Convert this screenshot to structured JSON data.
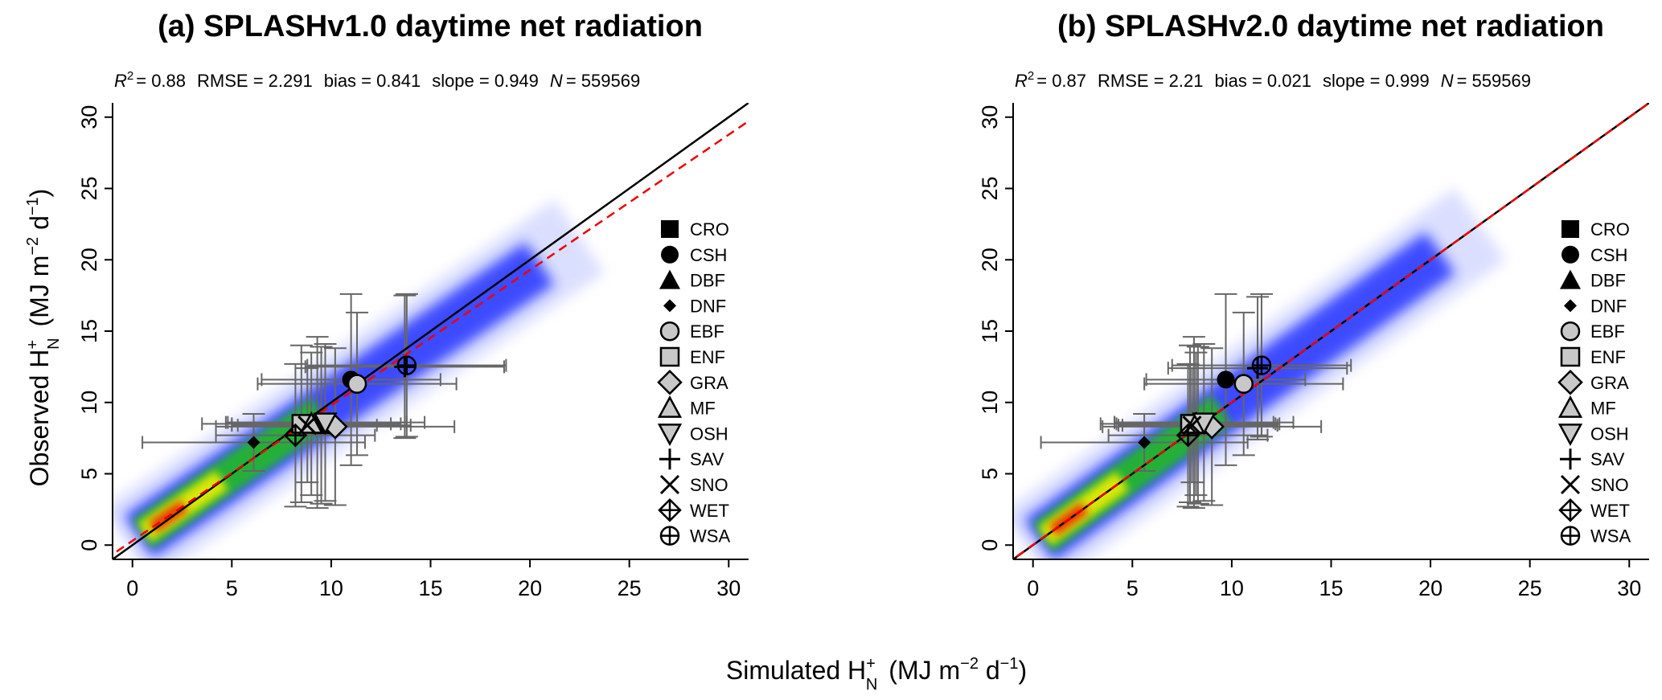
{
  "colors": {
    "density_low": "#d8dcff",
    "density_mid": "#2233ff",
    "density_green": "#22bb22",
    "density_yellow": "#eeee00",
    "density_red": "#ee2200",
    "fit_line": "#ee0000",
    "one_to_one": "#000000",
    "errorbar": "#666666"
  },
  "xlabel": "Simulated H",
  "xlabel_sup": "+",
  "xlabel_sub": "N",
  "xlabel_units": "(MJ m",
  "xlabel_exp1": "−2",
  "xlabel_mid": " d",
  "xlabel_exp2": "−1",
  "xlabel_close": ")",
  "ylabel": "Observed H",
  "ylabel_sup": "+",
  "ylabel_sub": "N",
  "ylabel_units": "(MJ m",
  "ylabel_exp1": "−2",
  "ylabel_mid": " d",
  "ylabel_exp2": "−1",
  "ylabel_close": ")",
  "legend": [
    "CRO",
    "CSH",
    "DBF",
    "DNF",
    "EBF",
    "ENF",
    "GRA",
    "MF",
    "OSH",
    "SAV",
    "SNO",
    "WET",
    "WSA"
  ],
  "chart_data": [
    {
      "type": "scatter",
      "title": "(a) SPLASHv1.0 daytime net radiation",
      "stats": {
        "r2_label": "R",
        "r2_exp": "2",
        "r2": "= 0.88",
        "rmse": "RMSE = 2.291",
        "bias": "bias = 0.841",
        "slope": "slope = 0.949",
        "n_label": "N",
        "n": "= 559569"
      },
      "xlim": [
        -1,
        31
      ],
      "ylim": [
        -1,
        31
      ],
      "xticks": [
        "0",
        "5",
        "10",
        "15",
        "20",
        "25",
        "30"
      ],
      "yticks": [
        "0",
        "5",
        "10",
        "15",
        "20",
        "25",
        "30"
      ],
      "fit_line": {
        "slope": 0.949,
        "intercept": 0.3
      },
      "one_to_one": true,
      "points": [
        {
          "pft": "CRO",
          "x": 9.5,
          "y": 8.4,
          "xerr": 4.5,
          "yerr": 5.5
        },
        {
          "pft": "CSH",
          "x": 11.0,
          "y": 11.6,
          "xerr": 4.5,
          "yerr": 6.0
        },
        {
          "pft": "DBF",
          "x": 9.3,
          "y": 8.6,
          "xerr": 4.5,
          "yerr": 6.0
        },
        {
          "pft": "DNF",
          "x": 6.1,
          "y": 7.2,
          "xerr": 5.6,
          "yerr": 2.0
        },
        {
          "pft": "EBF",
          "x": 11.3,
          "y": 11.3,
          "xerr": 5.0,
          "yerr": 5.0
        },
        {
          "pft": "ENF",
          "x": 8.5,
          "y": 8.5,
          "xerr": 5.0,
          "yerr": 5.5
        },
        {
          "pft": "GRA",
          "x": 10.2,
          "y": 8.3,
          "xerr": 6.0,
          "yerr": 5.5
        },
        {
          "pft": "MF",
          "x": 9.0,
          "y": 8.5,
          "xerr": 4.0,
          "yerr": 5.0
        },
        {
          "pft": "OSH",
          "x": 9.7,
          "y": 8.6,
          "xerr": 5.0,
          "yerr": 5.5
        },
        {
          "pft": "SAV",
          "x": 13.7,
          "y": 12.5,
          "xerr": 5.0,
          "yerr": 5.0
        },
        {
          "pft": "SNO",
          "x": 8.8,
          "y": 8.4,
          "xerr": 3.5,
          "yerr": 4.0
        },
        {
          "pft": "WET",
          "x": 8.2,
          "y": 7.7,
          "xerr": 4.0,
          "yerr": 5.0
        },
        {
          "pft": "WSA",
          "x": 13.8,
          "y": 12.6,
          "xerr": 5.0,
          "yerr": 5.0
        }
      ]
    },
    {
      "type": "scatter",
      "title": "(b) SPLASHv2.0 daytime net radiation",
      "stats": {
        "r2_label": "R",
        "r2_exp": "2",
        "r2": "= 0.87",
        "rmse": "RMSE = 2.21",
        "bias": "bias = 0.021",
        "slope": "slope = 0.999",
        "n_label": "N",
        "n": "= 559569"
      },
      "xlim": [
        -1,
        31
      ],
      "ylim": [
        -1,
        31
      ],
      "xticks": [
        "0",
        "5",
        "10",
        "15",
        "20",
        "25",
        "30"
      ],
      "yticks": [
        "0",
        "5",
        "10",
        "15",
        "20",
        "25",
        "30"
      ],
      "fit_line": {
        "slope": 0.999,
        "intercept": 0.02
      },
      "one_to_one": true,
      "points": [
        {
          "pft": "CRO",
          "x": 8.3,
          "y": 8.4,
          "xerr": 4.0,
          "yerr": 5.5
        },
        {
          "pft": "CSH",
          "x": 9.7,
          "y": 11.6,
          "xerr": 4.0,
          "yerr": 6.0
        },
        {
          "pft": "DBF",
          "x": 8.1,
          "y": 8.6,
          "xerr": 4.0,
          "yerr": 6.0
        },
        {
          "pft": "DNF",
          "x": 5.6,
          "y": 7.2,
          "xerr": 5.2,
          "yerr": 2.0
        },
        {
          "pft": "EBF",
          "x": 10.6,
          "y": 11.3,
          "xerr": 5.0,
          "yerr": 5.0
        },
        {
          "pft": "ENF",
          "x": 7.9,
          "y": 8.5,
          "xerr": 4.5,
          "yerr": 5.5
        },
        {
          "pft": "GRA",
          "x": 9.0,
          "y": 8.3,
          "xerr": 5.5,
          "yerr": 5.5
        },
        {
          "pft": "MF",
          "x": 8.2,
          "y": 8.5,
          "xerr": 4.0,
          "yerr": 5.0
        },
        {
          "pft": "OSH",
          "x": 8.6,
          "y": 8.6,
          "xerr": 4.5,
          "yerr": 5.5
        },
        {
          "pft": "SAV",
          "x": 11.3,
          "y": 12.4,
          "xerr": 4.5,
          "yerr": 5.0
        },
        {
          "pft": "SNO",
          "x": 8.0,
          "y": 8.4,
          "xerr": 3.5,
          "yerr": 4.0
        },
        {
          "pft": "WET",
          "x": 7.8,
          "y": 7.7,
          "xerr": 4.0,
          "yerr": 5.0
        },
        {
          "pft": "WSA",
          "x": 11.5,
          "y": 12.6,
          "xerr": 4.5,
          "yerr": 5.0
        }
      ]
    }
  ]
}
